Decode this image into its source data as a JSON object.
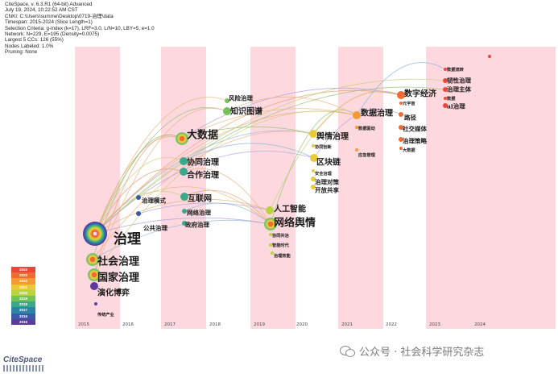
{
  "header_lines": [
    "CiteSpace, v. 6.3.R1 (64-bit) Advanced",
    "July 19, 2024, 10:22:52 AM CST",
    "CNKI: C:\\Users\\summe\\Desktop\\0719-治理\\data",
    "Timespan: 2015-2024 (Slice Length=1)",
    "Selection Criteria: g-index (k=17), LRF=3.0, L/N=10, LBY=5, e=1.0",
    "Network: N=229, E=195 (Density=0.0075)",
    "Largest 5 CCs: 126 (55%)",
    "Nodes Labeled: 1.0%",
    "Pruning: None"
  ],
  "years": [
    "2015",
    "2016",
    "2017",
    "2018",
    "2019",
    "2020",
    "2021",
    "2022",
    "2023",
    "2024"
  ],
  "legend": {
    "items": [
      "2024",
      "2023",
      "2022",
      "2021",
      "2020",
      "2019",
      "2018",
      "2017",
      "2016",
      "2015"
    ],
    "colors": [
      "#e8473a",
      "#f06a32",
      "#f39a33",
      "#e9c93a",
      "#b9d43c",
      "#72c257",
      "#3aa88a",
      "#2b84a3",
      "#3a5aa8",
      "#5a3c9c"
    ]
  },
  "keywords": [
    {
      "text": "治理",
      "size": "big"
    },
    {
      "text": "社会治理",
      "size": "large"
    },
    {
      "text": "国家治理",
      "size": "large"
    },
    {
      "text": "演化博弈",
      "size": "medium"
    },
    {
      "text": "传统产业",
      "size": "tiny"
    },
    {
      "text": "治理模式",
      "size": "small"
    },
    {
      "text": "公共治理",
      "size": "small"
    },
    {
      "text": "大数据",
      "size": "large"
    },
    {
      "text": "协同治理",
      "size": "medium"
    },
    {
      "text": "合作治理",
      "size": "medium"
    },
    {
      "text": "互联网",
      "size": "medium"
    },
    {
      "text": "网络治理",
      "size": "small"
    },
    {
      "text": "政府治理",
      "size": "small"
    },
    {
      "text": "风险治理",
      "size": "small"
    },
    {
      "text": "知识图谱",
      "size": "medium"
    },
    {
      "text": "人工智能",
      "size": "medium"
    },
    {
      "text": "网络舆情",
      "size": "large"
    },
    {
      "text": "协同共治",
      "size": "tiny"
    },
    {
      "text": "智能时代",
      "size": "tiny"
    },
    {
      "text": "治理效能",
      "size": "tiny"
    },
    {
      "text": "舆情治理",
      "size": "medium"
    },
    {
      "text": "协同创新",
      "size": "tiny"
    },
    {
      "text": "区块链",
      "size": "medium"
    },
    {
      "text": "安全治理",
      "size": "tiny"
    },
    {
      "text": "治理对策",
      "size": "small"
    },
    {
      "text": "开放共享",
      "size": "small"
    },
    {
      "text": "数据治理",
      "size": "medium"
    },
    {
      "text": "数据驱动",
      "size": "tiny"
    },
    {
      "text": "应急管理",
      "size": "tiny"
    },
    {
      "text": "数字经济",
      "size": "medium"
    },
    {
      "text": "元宇宙",
      "size": "tiny"
    },
    {
      "text": "路径",
      "size": "small"
    },
    {
      "text": "社交媒体",
      "size": "small"
    },
    {
      "text": "治理策略",
      "size": "small"
    },
    {
      "text": "大数据",
      "size": "tiny"
    },
    {
      "text": "数据流转",
      "size": "tiny"
    },
    {
      "text": "韧性治理",
      "size": "small"
    },
    {
      "text": "治理主体",
      "size": "small"
    },
    {
      "text": "数据",
      "size": "tiny"
    },
    {
      "text": "ai治理",
      "size": "small"
    }
  ],
  "brand": "CiteSpace",
  "watermark": "公众号 · 社会科学研究杂志",
  "icons": {
    "watermark": "wechat-icon"
  }
}
